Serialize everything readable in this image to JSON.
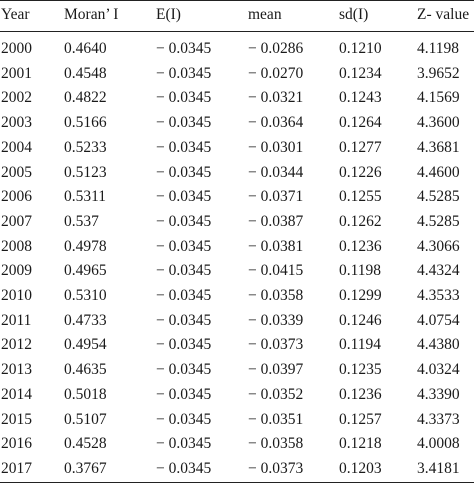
{
  "table": {
    "headers": [
      "Year",
      "Moran’ I",
      "E(I)",
      "mean",
      "sd(I)",
      "Z- value"
    ],
    "rows": [
      [
        "2000",
        "0.4640",
        "− 0.0345",
        "− 0.0286",
        "0.1210",
        "4.1198"
      ],
      [
        "2001",
        "0.4548",
        "− 0.0345",
        "− 0.0270",
        "0.1234",
        "3.9652"
      ],
      [
        "2002",
        "0.4822",
        "− 0.0345",
        "− 0.0321",
        "0.1243",
        "4.1569"
      ],
      [
        "2003",
        "0.5166",
        "− 0.0345",
        "− 0.0364",
        "0.1264",
        "4.3600"
      ],
      [
        "2004",
        "0.5233",
        "− 0.0345",
        "− 0.0301",
        "0.1277",
        "4.3681"
      ],
      [
        "2005",
        "0.5123",
        "− 0.0345",
        "− 0.0344",
        "0.1226",
        "4.4600"
      ],
      [
        "2006",
        "0.5311",
        "− 0.0345",
        "− 0.0371",
        "0.1255",
        "4.5285"
      ],
      [
        "2007",
        "0.537",
        "− 0.0345",
        "− 0.0387",
        "0.1262",
        "4.5285"
      ],
      [
        "2008",
        "0.4978",
        "− 0.0345",
        "− 0.0381",
        "0.1236",
        "4.3066"
      ],
      [
        "2009",
        "0.4965",
        "− 0.0345",
        "− 0.0415",
        "0.1198",
        "4.4324"
      ],
      [
        "2010",
        "0.5310",
        "− 0.0345",
        "− 0.0358",
        "0.1299",
        "4.3533"
      ],
      [
        "2011",
        "0.4733",
        "− 0.0345",
        "− 0.0339",
        "0.1246",
        "4.0754"
      ],
      [
        "2012",
        "0.4954",
        "− 0.0345",
        "− 0.0373",
        "0.1194",
        "4.4380"
      ],
      [
        "2013",
        "0.4635",
        "− 0.0345",
        "− 0.0397",
        "0.1235",
        "4.0324"
      ],
      [
        "2014",
        "0.5018",
        "− 0.0345",
        "− 0.0352",
        "0.1236",
        "4.3390"
      ],
      [
        "2015",
        "0.5107",
        "− 0.0345",
        "− 0.0351",
        "0.1257",
        "4.3373"
      ],
      [
        "2016",
        "0.4528",
        "− 0.0345",
        "− 0.0358",
        "0.1218",
        "4.0008"
      ],
      [
        "2017",
        "0.3767",
        "− 0.0345",
        "− 0.0373",
        "0.1203",
        "3.4181"
      ]
    ]
  }
}
